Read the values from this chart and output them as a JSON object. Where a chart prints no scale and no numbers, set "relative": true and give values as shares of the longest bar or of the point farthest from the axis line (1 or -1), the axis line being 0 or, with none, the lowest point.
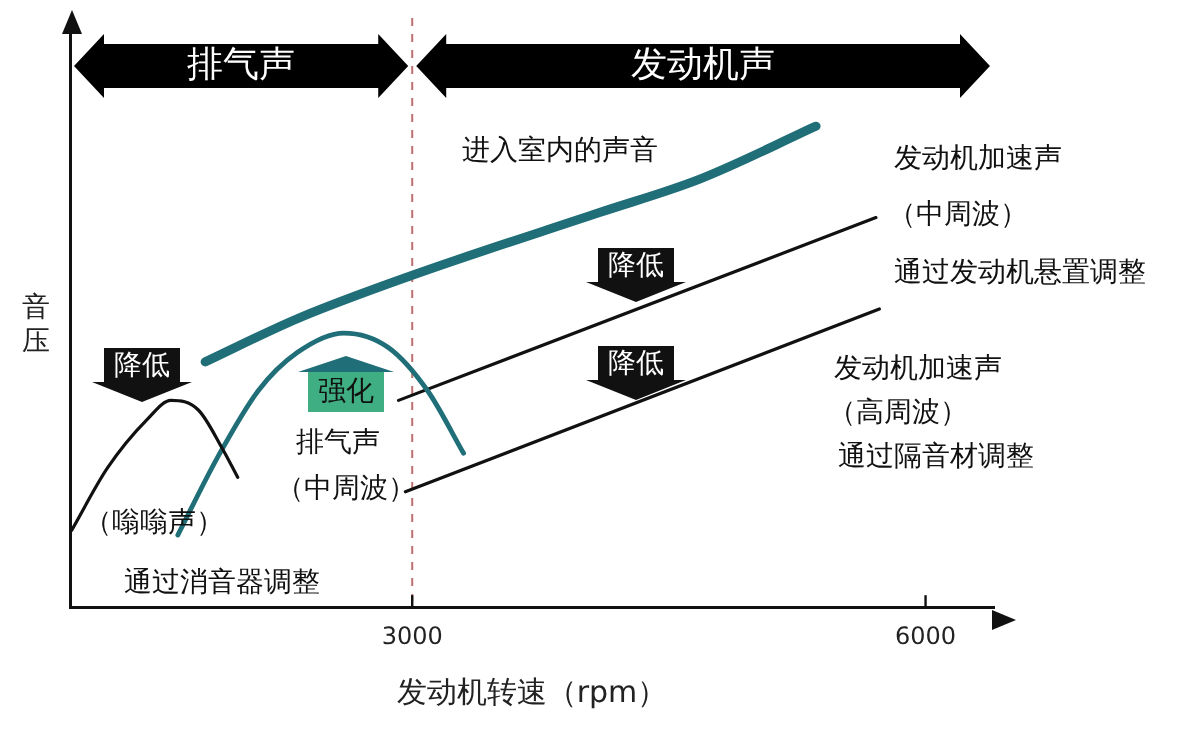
{
  "chart_data": {
    "type": "line",
    "relative": true,
    "xlabel": "发动机转速（rpm）",
    "ylabel": "音压",
    "xlim": [
      1000,
      6400
    ],
    "xticks": [
      3000,
      6000
    ],
    "grid": false,
    "legend": false,
    "marker": "none",
    "tick_labels": "x",
    "series": [
      {
        "color": "#1f6e78",
        "x": [
          1790,
          2330,
          3000,
          4090,
          4680,
          5360
        ],
        "values": [
          0.51,
          0.6,
          0.69,
          0.82,
          0.89,
          1
        ]
      },
      {
        "color": "#111111",
        "x": [
          1010,
          1220,
          1450,
          1590,
          1750,
          1890,
          1980
        ],
        "values": [
          0.16,
          0.29,
          0.39,
          0.43,
          0.41,
          0.33,
          0.27
        ]
      },
      {
        "color": "#1f6e78",
        "x": [
          1630,
          1860,
          2100,
          2330,
          2600,
          2860,
          3090,
          3300
        ],
        "values": [
          0.15,
          0.31,
          0.45,
          0.53,
          0.57,
          0.54,
          0.45,
          0.32
        ]
      },
      {
        "color": "#111111",
        "x": [
          2920,
          5710
        ],
        "values": [
          0.43,
          0.81
        ]
      },
      {
        "color": "#111111",
        "x": [
          2960,
          5730
        ],
        "values": [
          0.24,
          0.62
        ]
      }
    ],
    "ref_lines": [
      {
        "axis": "x",
        "value": 3000,
        "color": "#c07070",
        "line_style": "dashed"
      }
    ],
    "annotations": [
      "进入室内的声音",
      "发动机加速声",
      "（中周波）",
      "通过发动机悬置调整",
      "发动机加速声",
      "（高周波）",
      "通过隔音材调整",
      "（嗡嗡声）",
      "排气声",
      "（中周波）",
      "通过消音器调整",
      "降低",
      "降低",
      "降低",
      "强化",
      "排气声",
      "发动机声"
    ]
  }
}
